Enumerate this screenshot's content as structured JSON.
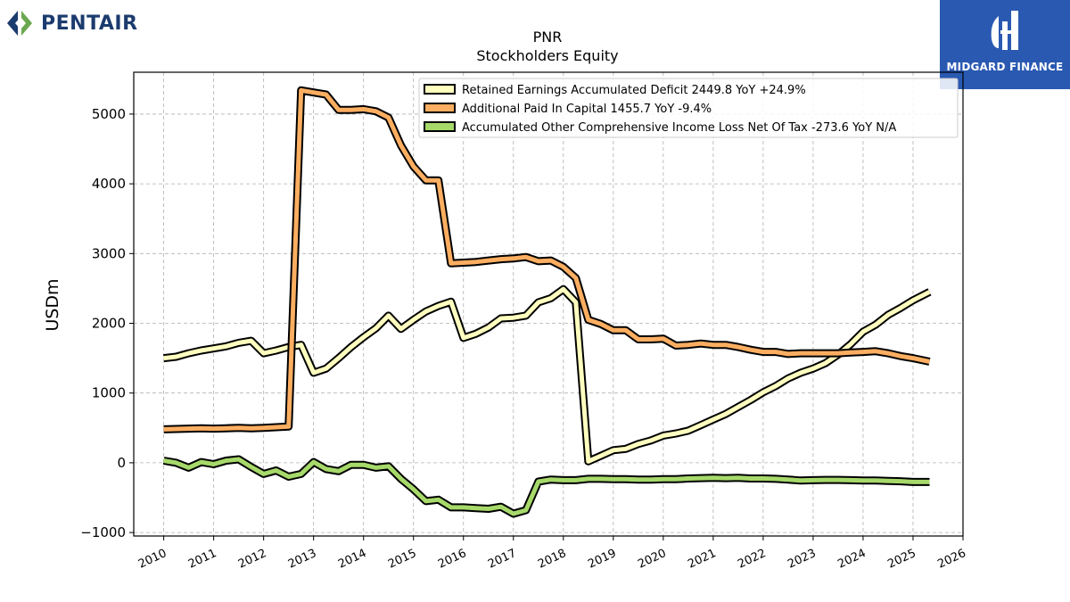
{
  "brand_left": {
    "name": "PENTAIR",
    "icon": "pentair-diamond-icon",
    "color": "#1c3b6e"
  },
  "brand_right": {
    "name": "MIDGARD FINANCE",
    "icon": "midgard-logo-icon",
    "background": "#2a59b2"
  },
  "chart_data": {
    "type": "line",
    "title": "PNR",
    "subtitle": "Stockholders  Equity",
    "xlabel": "",
    "ylabel": "USDm",
    "xlim": [
      2009.4,
      2026.0
    ],
    "ylim": [
      -1050,
      5600
    ],
    "x_ticks": [
      "2010",
      "2011",
      "2012",
      "2013",
      "2014",
      "2015",
      "2016",
      "2017",
      "2018",
      "2019",
      "2020",
      "2021",
      "2022",
      "2023",
      "2024",
      "2025",
      "2026"
    ],
    "y_ticks": [
      "−1000",
      "0",
      "1000",
      "2000",
      "3000",
      "4000",
      "5000"
    ],
    "y_tick_values": [
      -1000,
      0,
      1000,
      2000,
      3000,
      4000,
      5000
    ],
    "grid": true,
    "legend_position": "top-right",
    "series": [
      {
        "name": "Retained Earnings Accumulated Deficit  2449.8 YoY +24.9%",
        "color": "#ffffbf",
        "x": [
          2010.0,
          2010.25,
          2010.5,
          2010.75,
          2011.0,
          2011.25,
          2011.5,
          2011.75,
          2012.0,
          2012.25,
          2012.5,
          2012.75,
          2013.0,
          2013.25,
          2013.5,
          2013.75,
          2014.0,
          2014.25,
          2014.5,
          2014.75,
          2015.0,
          2015.25,
          2015.5,
          2015.75,
          2016.0,
          2016.25,
          2016.5,
          2016.75,
          2017.0,
          2017.25,
          2017.5,
          2017.75,
          2018.0,
          2018.25,
          2018.5,
          2018.75,
          2019.0,
          2019.25,
          2019.5,
          2019.75,
          2020.0,
          2020.25,
          2020.5,
          2020.75,
          2021.0,
          2021.25,
          2021.5,
          2021.75,
          2022.0,
          2022.25,
          2022.5,
          2022.75,
          2023.0,
          2023.25,
          2023.5,
          2023.75,
          2024.0,
          2024.25,
          2024.5,
          2024.75,
          2025.0,
          2025.33
        ],
        "y": [
          1500,
          1520,
          1570,
          1610,
          1640,
          1670,
          1720,
          1750,
          1570,
          1610,
          1660,
          1690,
          1290,
          1350,
          1500,
          1660,
          1800,
          1930,
          2110,
          1920,
          2050,
          2170,
          2250,
          2310,
          1790,
          1850,
          1940,
          2070,
          2080,
          2110,
          2300,
          2360,
          2490,
          2300,
          20,
          100,
          180,
          200,
          270,
          320,
          390,
          420,
          460,
          540,
          620,
          700,
          800,
          900,
          1010,
          1100,
          1210,
          1290,
          1350,
          1430,
          1550,
          1700,
          1880,
          1980,
          2120,
          2220,
          2330,
          2450
        ]
      },
      {
        "name": "Additional Paid In Capital  1455.7 YoY -9.4%",
        "color": "#fdae61",
        "x": [
          2010.0,
          2010.25,
          2010.5,
          2010.75,
          2011.0,
          2011.25,
          2011.5,
          2011.75,
          2012.0,
          2012.25,
          2012.5,
          2012.75,
          2013.0,
          2013.25,
          2013.5,
          2013.75,
          2014.0,
          2014.25,
          2014.5,
          2014.75,
          2015.0,
          2015.25,
          2015.5,
          2015.75,
          2016.0,
          2016.25,
          2016.5,
          2016.75,
          2017.0,
          2017.25,
          2017.5,
          2017.75,
          2018.0,
          2018.25,
          2018.5,
          2018.75,
          2019.0,
          2019.25,
          2019.5,
          2019.75,
          2020.0,
          2020.25,
          2020.5,
          2020.75,
          2021.0,
          2021.25,
          2021.5,
          2021.75,
          2022.0,
          2022.25,
          2022.5,
          2022.75,
          2023.0,
          2023.25,
          2023.5,
          2023.75,
          2024.0,
          2024.25,
          2024.5,
          2024.75,
          2025.0,
          2025.33
        ],
        "y": [
          480,
          485,
          490,
          495,
          490,
          495,
          500,
          495,
          500,
          510,
          520,
          5340,
          5310,
          5280,
          5060,
          5060,
          5070,
          5040,
          4950,
          4550,
          4250,
          4050,
          4050,
          2860,
          2870,
          2880,
          2900,
          2920,
          2930,
          2950,
          2890,
          2900,
          2810,
          2650,
          2050,
          1990,
          1900,
          1900,
          1770,
          1770,
          1780,
          1680,
          1690,
          1710,
          1690,
          1690,
          1660,
          1620,
          1590,
          1590,
          1560,
          1570,
          1570,
          1570,
          1570,
          1580,
          1590,
          1600,
          1570,
          1530,
          1500,
          1450
        ]
      },
      {
        "name": "Accumulated Other Comprehensive Income Loss Net Of Tax  -273.6 YoY N/A",
        "color": "#a6d96a",
        "x": [
          2010.0,
          2010.25,
          2010.5,
          2010.75,
          2011.0,
          2011.25,
          2011.5,
          2011.75,
          2012.0,
          2012.25,
          2012.5,
          2012.75,
          2013.0,
          2013.25,
          2013.5,
          2013.75,
          2014.0,
          2014.25,
          2014.5,
          2014.75,
          2015.0,
          2015.25,
          2015.5,
          2015.75,
          2016.0,
          2016.25,
          2016.5,
          2016.75,
          2017.0,
          2017.25,
          2017.5,
          2017.75,
          2018.0,
          2018.25,
          2018.5,
          2018.75,
          2019.0,
          2019.25,
          2019.5,
          2019.75,
          2020.0,
          2020.25,
          2020.5,
          2020.75,
          2021.0,
          2021.25,
          2021.5,
          2021.75,
          2022.0,
          2022.25,
          2022.5,
          2022.75,
          2023.0,
          2023.25,
          2023.5,
          2023.75,
          2024.0,
          2024.25,
          2024.5,
          2024.75,
          2025.0,
          2025.33
        ],
        "y": [
          30,
          0,
          -70,
          10,
          -20,
          30,
          50,
          -60,
          -160,
          -110,
          -200,
          -160,
          10,
          -90,
          -120,
          -30,
          -30,
          -70,
          -50,
          -230,
          -380,
          -550,
          -530,
          -640,
          -640,
          -650,
          -660,
          -630,
          -730,
          -680,
          -270,
          -240,
          -250,
          -250,
          -230,
          -230,
          -235,
          -235,
          -240,
          -240,
          -235,
          -235,
          -225,
          -220,
          -215,
          -220,
          -215,
          -225,
          -225,
          -230,
          -240,
          -255,
          -250,
          -245,
          -245,
          -250,
          -255,
          -255,
          -260,
          -265,
          -275,
          -275
        ]
      }
    ]
  }
}
